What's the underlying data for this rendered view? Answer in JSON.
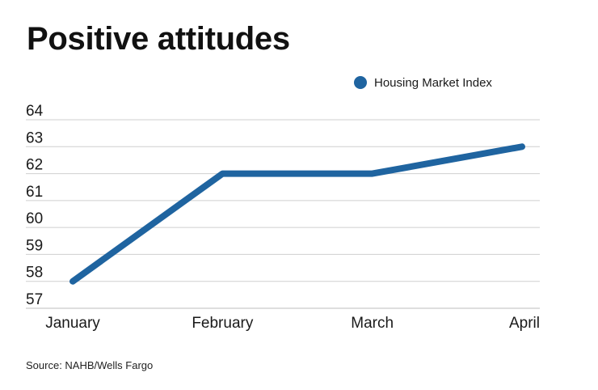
{
  "chart_data": {
    "type": "line",
    "title": "Positive attitudes",
    "categories": [
      "January",
      "February",
      "March",
      "April"
    ],
    "series": [
      {
        "name": "Housing Market Index",
        "values": [
          58,
          62,
          62,
          63
        ],
        "color": "#1f64a0"
      }
    ],
    "ylim": [
      57,
      64
    ],
    "yticks": [
      57,
      58,
      59,
      60,
      61,
      62,
      63,
      64
    ],
    "xlabel": "",
    "ylabel": "",
    "grid": true,
    "legend_position": "top-right"
  },
  "source": "Source: NAHB/Wells Fargo"
}
